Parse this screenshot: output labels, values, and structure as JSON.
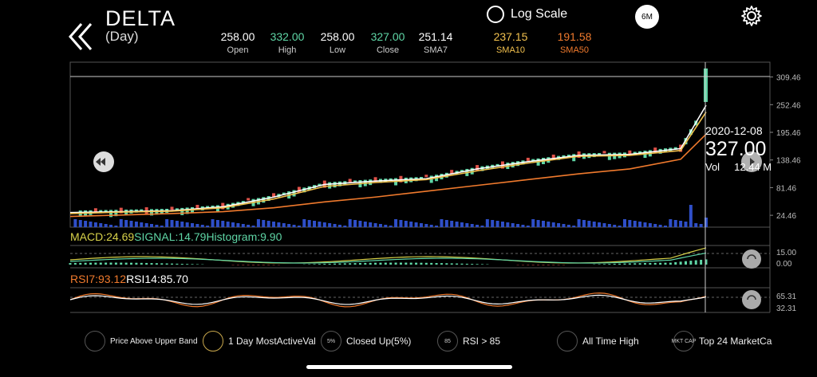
{
  "header": {
    "ticker": "DELTA",
    "period": "(Day)",
    "log_scale_label": "Log Scale",
    "range_button": "6M",
    "stats": [
      {
        "value": "258.00",
        "label": "Open",
        "color": "#ffffff"
      },
      {
        "value": "332.00",
        "label": "High",
        "color": "#5fd6a6"
      },
      {
        "value": "258.00",
        "label": "Low",
        "color": "#ffffff"
      },
      {
        "value": "327.00",
        "label": "Close",
        "color": "#5fd6a6"
      },
      {
        "value": "251.14",
        "label": "SMA7",
        "color": "#ffffff"
      },
      {
        "value": "237.15",
        "label": "SMA10",
        "color": "#f2c14e"
      },
      {
        "value": "191.58",
        "label": "SMA50",
        "color": "#f07a2d"
      }
    ]
  },
  "hover": {
    "date": "2020-12-08",
    "close": "327.00",
    "vol_label": "Vol",
    "vol_value": "12.44 M"
  },
  "price_axis": [
    "309.46",
    "252.46",
    "195.46",
    "138.46",
    "81.46",
    "24.46"
  ],
  "indicators": {
    "macd": {
      "macd_label": "MACD:24.69",
      "signal_label": "SIGNAL:14.79",
      "hist_label": "Histogram:9.90",
      "axis": [
        "15.00",
        "0.00"
      ]
    },
    "rsi": {
      "rsi7_label": "RSI7:93.12",
      "rsi14_label": "RSI14:85.70",
      "axis": [
        "65.31",
        "32.31"
      ]
    }
  },
  "badges": [
    {
      "icon": "upper-band-icon",
      "label": "Price Above Upper Band"
    },
    {
      "icon": "coins-icon",
      "label": "1 Day MostActiveVal"
    },
    {
      "icon": "percent-icon",
      "icon_text": "5%",
      "label": "Closed Up(5%)"
    },
    {
      "icon": "rsi-icon",
      "icon_text": "85",
      "label": "RSI > 85"
    },
    {
      "icon": "trend-up-icon",
      "label": "All Time High"
    },
    {
      "icon": "market-cap-icon",
      "icon_text": "MKT CAP",
      "label": "Top 24 MarketCa"
    }
  ],
  "colors": {
    "up": "#5fd6a6",
    "down": "#e0534a",
    "sma7": "#ffffff",
    "sma10": "#f2c14e",
    "sma50": "#f07a2d",
    "volume": "#2f4fc8",
    "macd": "#d8d24a",
    "signal": "#5fd6a6",
    "rsi7": "#f07a2d",
    "rsi14": "#ffffff"
  },
  "chart_data": {
    "type": "line",
    "series": [
      {
        "name": "SMA7",
        "x": [
          0,
          10,
          20,
          30,
          40,
          50,
          60,
          70,
          80,
          90,
          100,
          110,
          120,
          125
        ],
        "values": [
          30,
          32,
          34,
          42,
          62,
          88,
          95,
          100,
          120,
          135,
          148,
          150,
          162,
          251.14
        ]
      },
      {
        "name": "SMA10",
        "x": [
          0,
          10,
          20,
          30,
          40,
          50,
          60,
          70,
          80,
          90,
          100,
          110,
          120,
          125
        ],
        "values": [
          28,
          31,
          33,
          40,
          58,
          84,
          92,
          98,
          116,
          132,
          146,
          148,
          158,
          237.15
        ]
      },
      {
        "name": "SMA50",
        "x": [
          0,
          10,
          20,
          30,
          40,
          50,
          60,
          70,
          80,
          90,
          100,
          110,
          120,
          125
        ],
        "values": [
          22,
          25,
          28,
          32,
          40,
          52,
          62,
          74,
          86,
          98,
          110,
          120,
          140,
          191.58
        ]
      }
    ],
    "ylim": [
      0,
      340
    ],
    "yticks": [
      24.46,
      81.46,
      138.46,
      195.46,
      252.46,
      309.46
    ],
    "last_candle": {
      "date": "2020-12-08",
      "open": 258.0,
      "high": 332.0,
      "low": 258.0,
      "close": 327.0,
      "volume": "12.44 M"
    }
  }
}
